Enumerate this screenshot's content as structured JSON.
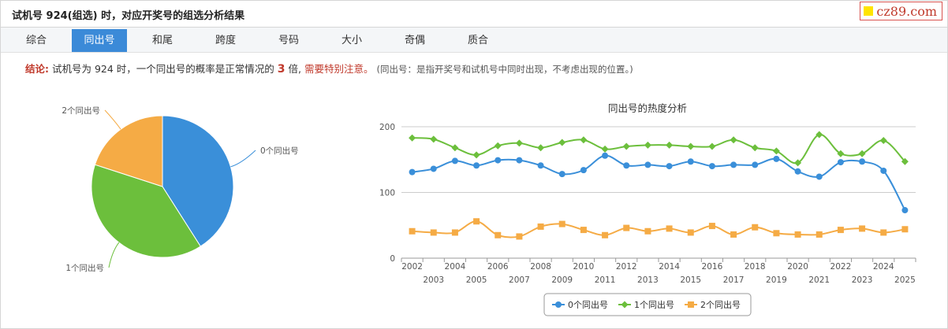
{
  "header": {
    "title": "试机号 924(组选) 时，对应开奖号的组选分析结果",
    "logo_text": "cz89.com"
  },
  "tabs": [
    "综合",
    "同出号",
    "和尾",
    "跨度",
    "号码",
    "大小",
    "奇偶",
    "质合"
  ],
  "active_tab": 1,
  "conclusion": {
    "label": "结论:",
    "text1": "试机号为 924 时，一个同出号的概率是正常情况的",
    "multiple": "3",
    "text2": "倍,",
    "warning": "需要特别注意。",
    "note": "(同出号：是指开奖号和试机号中同时出现，不考虑出现的位置。)"
  },
  "colors": {
    "blue": "#3a8fd9",
    "green": "#6cbf3c",
    "orange": "#f5ab45",
    "accent_red": "#c0392b",
    "tab_active": "#3b8ad8"
  },
  "chart_data": [
    {
      "type": "pie",
      "labels": [
        "0个同出号",
        "1个同出号",
        "2个同出号"
      ],
      "values": [
        41,
        39,
        20
      ],
      "colors": [
        "#3a8fd9",
        "#6cbf3c",
        "#f5ab45"
      ]
    },
    {
      "type": "line",
      "title": "同出号的热度分析",
      "x": [
        "2002",
        "2003",
        "2004",
        "2005",
        "2006",
        "2007",
        "2008",
        "2009",
        "2010",
        "2011",
        "2012",
        "2013",
        "2014",
        "2015",
        "2016",
        "2017",
        "2018",
        "2019",
        "2020",
        "2021",
        "2022",
        "2023",
        "2024",
        "2025"
      ],
      "ylim": [
        0,
        200
      ],
      "yticks": [
        0,
        100,
        200
      ],
      "grid": true,
      "legend_position": "bottom",
      "series": [
        {
          "name": "0个同出号",
          "color": "#3a8fd9",
          "marker": "circle",
          "values": [
            131,
            136,
            148,
            141,
            149,
            149,
            141,
            128,
            134,
            156,
            141,
            142,
            140,
            147,
            140,
            142,
            142,
            151,
            132,
            124,
            146,
            147,
            133,
            73
          ]
        },
        {
          "name": "1个同出号",
          "color": "#6cbf3c",
          "marker": "diamond",
          "values": [
            183,
            181,
            168,
            157,
            171,
            175,
            168,
            176,
            180,
            166,
            170,
            172,
            172,
            170,
            170,
            180,
            168,
            163,
            145,
            188,
            159,
            159,
            179,
            147
          ]
        },
        {
          "name": "2个同出号",
          "color": "#f5ab45",
          "marker": "square",
          "values": [
            41,
            39,
            39,
            56,
            35,
            33,
            48,
            52,
            43,
            35,
            46,
            41,
            45,
            39,
            49,
            36,
            47,
            38,
            36,
            36,
            43,
            45,
            39,
            44
          ]
        }
      ]
    }
  ]
}
